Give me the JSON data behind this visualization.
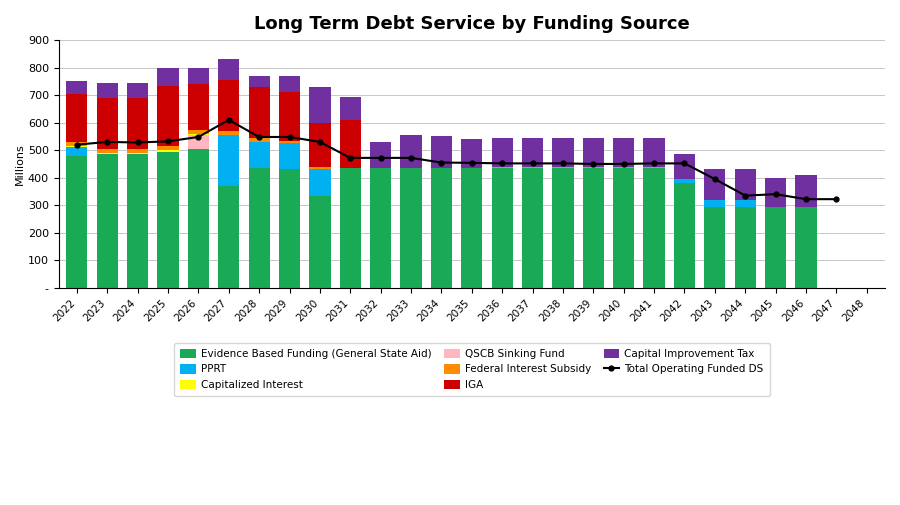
{
  "years": [
    2022,
    2023,
    2024,
    2025,
    2026,
    2027,
    2028,
    2029,
    2030,
    2031,
    2032,
    2033,
    2034,
    2035,
    2036,
    2037,
    2038,
    2039,
    2040,
    2041,
    2042,
    2043,
    2044,
    2045,
    2046,
    2047,
    2048
  ],
  "ebf": [
    480,
    485,
    485,
    495,
    505,
    370,
    435,
    430,
    335,
    435,
    435,
    435,
    435,
    435,
    435,
    435,
    435,
    435,
    435,
    435,
    380,
    295,
    295,
    295,
    295,
    0,
    0
  ],
  "pprt": [
    30,
    0,
    0,
    0,
    0,
    185,
    95,
    95,
    95,
    0,
    0,
    0,
    0,
    0,
    0,
    0,
    0,
    0,
    0,
    0,
    15,
    25,
    25,
    0,
    0,
    0,
    0
  ],
  "cap_interest": [
    5,
    5,
    5,
    5,
    5,
    0,
    0,
    0,
    0,
    0,
    0,
    0,
    0,
    0,
    0,
    0,
    0,
    0,
    0,
    0,
    0,
    0,
    0,
    0,
    0,
    0,
    0
  ],
  "qscb": [
    0,
    0,
    0,
    0,
    50,
    0,
    0,
    0,
    0,
    0,
    0,
    0,
    0,
    0,
    0,
    0,
    0,
    0,
    0,
    0,
    0,
    0,
    0,
    0,
    0,
    0,
    0
  ],
  "fed_interest": [
    15,
    15,
    15,
    15,
    15,
    15,
    15,
    10,
    8,
    0,
    0,
    0,
    0,
    0,
    5,
    5,
    5,
    5,
    5,
    5,
    0,
    0,
    0,
    0,
    0,
    0,
    0
  ],
  "iga": [
    175,
    185,
    185,
    220,
    165,
    185,
    185,
    175,
    160,
    175,
    0,
    0,
    0,
    0,
    0,
    0,
    0,
    0,
    0,
    0,
    0,
    0,
    0,
    0,
    0,
    0,
    0
  ],
  "cap_imp_tax": [
    45,
    55,
    55,
    65,
    60,
    75,
    40,
    60,
    130,
    85,
    95,
    120,
    115,
    105,
    105,
    105,
    105,
    105,
    105,
    105,
    90,
    110,
    110,
    105,
    115,
    0,
    0
  ],
  "total_op_ds": [
    520,
    530,
    528,
    532,
    548,
    610,
    548,
    548,
    530,
    472,
    472,
    472,
    455,
    454,
    452,
    452,
    452,
    450,
    450,
    452,
    452,
    395,
    335,
    340,
    322,
    322,
    0
  ],
  "title": "Long Term Debt Service by Funding Source",
  "ylabel": "Millions",
  "ylim": [
    0,
    900
  ],
  "yticks": [
    0,
    100,
    200,
    300,
    400,
    500,
    600,
    700,
    800,
    900
  ],
  "colors": {
    "ebf": "#1aaa55",
    "pprt": "#00b0f0",
    "cap_interest": "#ffff00",
    "qscb": "#ffb6c1",
    "fed_interest": "#ff8c00",
    "iga": "#cc0000",
    "cap_imp_tax": "#7030a0",
    "line": "#000000"
  },
  "legend_labels": {
    "ebf": "Evidence Based Funding (General State Aid)",
    "pprt": "PPRT",
    "cap_interest": "Capitalized Interest",
    "qscb": "QSCB Sinking Fund",
    "fed_interest": "Federal Interest Subsidy",
    "iga": "IGA",
    "cap_imp_tax": "Capital Improvement Tax",
    "line": "Total Operating Funded DS"
  }
}
